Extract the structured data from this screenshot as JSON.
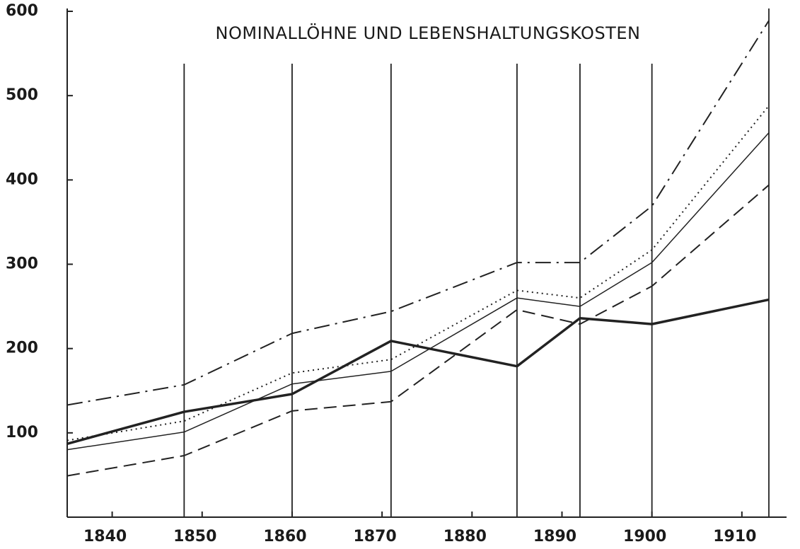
{
  "chart_data": {
    "type": "line",
    "title": "NOMINALLÖHNE UND LEBENSHALTUNGSKOSTEN",
    "x": [
      1835,
      1848,
      1860,
      1871,
      1885,
      1892,
      1900,
      1913
    ],
    "xlim": [
      1835,
      1913
    ],
    "xticks": [
      1840,
      1850,
      1860,
      1870,
      1880,
      1890,
      1900,
      1910
    ],
    "ylim": [
      0,
      600
    ],
    "yticks": [
      100,
      200,
      300,
      400,
      500,
      600
    ],
    "vertical_lines": true,
    "series": [
      {
        "color": "#222",
        "width": 3.5,
        "dash": "solid",
        "values": [
          87,
          125,
          146,
          209,
          179,
          236,
          229,
          258
        ]
      },
      {
        "color": "#222",
        "width": 1.5,
        "dash": "solid",
        "values": [
          80,
          101,
          158,
          173,
          260,
          250,
          302,
          456
        ]
      },
      {
        "color": "#222",
        "width": 2,
        "dash": "dotted",
        "values": [
          91,
          114,
          171,
          187,
          269,
          260,
          317,
          488
        ]
      },
      {
        "color": "#222",
        "width": 2,
        "dash": "dashed",
        "values": [
          49,
          73,
          126,
          137,
          246,
          229,
          274,
          394
        ]
      },
      {
        "color": "#222",
        "width": 2,
        "dash": "dashdot",
        "values": [
          133,
          157,
          218,
          244,
          302,
          302,
          369,
          589
        ]
      }
    ]
  }
}
